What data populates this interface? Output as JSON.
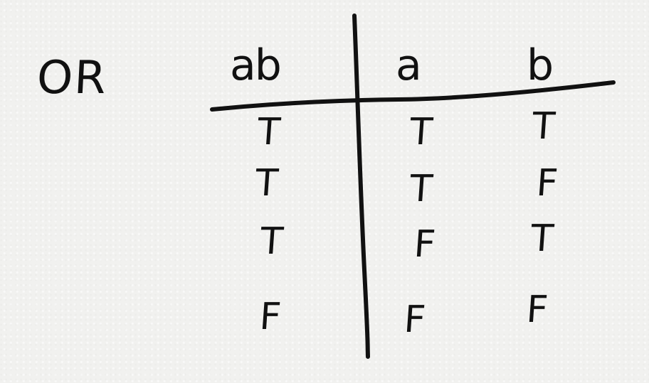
{
  "title": "OR",
  "headers": [
    "ab",
    "a",
    "b"
  ],
  "rows": [
    [
      "T",
      "T",
      "T"
    ],
    [
      "T",
      "T",
      "F"
    ],
    [
      "T",
      "F",
      "T"
    ],
    [
      "F",
      "F",
      "F"
    ]
  ]
}
